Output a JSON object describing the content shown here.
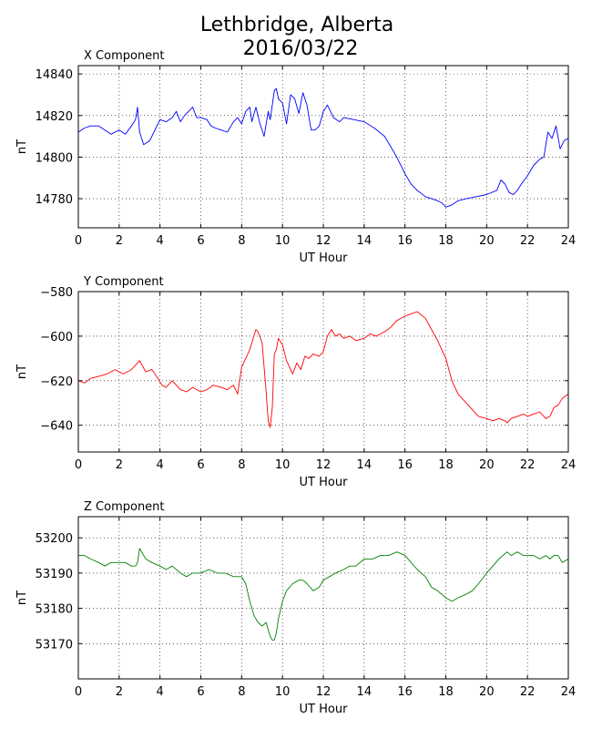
{
  "figure": {
    "title_line1": "Lethbridge, Alberta",
    "title_line2": "2016/03/22"
  },
  "chart_data": [
    {
      "type": "line",
      "title": "X Component",
      "xlabel": "UT Hour",
      "ylabel": "nT",
      "xlim": [
        0,
        24
      ],
      "ylim": [
        14766,
        14844
      ],
      "xticks": [
        0,
        2,
        4,
        6,
        8,
        10,
        12,
        14,
        16,
        18,
        20,
        22,
        24
      ],
      "yticks": [
        14780,
        14800,
        14820,
        14840
      ],
      "grid": true,
      "color": "#0000ff",
      "series": [
        {
          "x": [
            0,
            0.3,
            0.6,
            1.0,
            1.3,
            1.6,
            2.0,
            2.3,
            2.6,
            2.8,
            2.9,
            3.0,
            3.2,
            3.5,
            3.8,
            4.0,
            4.3,
            4.6,
            4.8,
            5.0,
            5.2,
            5.4,
            5.6,
            5.8,
            6.0,
            6.3,
            6.5,
            6.7,
            7.0,
            7.3,
            7.6,
            7.8,
            8.0,
            8.2,
            8.4,
            8.5,
            8.7,
            8.9,
            9.1,
            9.3,
            9.4,
            9.6,
            9.7,
            9.8,
            10.0,
            10.2,
            10.4,
            10.6,
            10.8,
            11.0,
            11.2,
            11.4,
            11.6,
            11.8,
            12.0,
            12.2,
            12.5,
            12.8,
            13.0,
            13.5,
            14.0,
            14.5,
            15.0,
            15.3,
            15.6,
            16.0,
            16.3,
            16.6,
            17.0,
            17.3,
            17.6,
            17.8,
            18.0,
            18.3,
            18.6,
            19.0,
            19.5,
            20.0,
            20.5,
            20.7,
            20.9,
            21.1,
            21.3,
            21.5,
            21.7,
            22.0,
            22.3,
            22.6,
            22.8,
            23.0,
            23.2,
            23.4,
            23.6,
            23.8,
            24.0
          ],
          "y": [
            14812,
            14814,
            14815,
            14815,
            14813,
            14811,
            14813,
            14811,
            14815,
            14818,
            14824,
            14812,
            14806,
            14808,
            14814,
            14818,
            14817,
            14819,
            14822,
            14817,
            14820,
            14822,
            14824,
            14819,
            14819,
            14818,
            14815,
            14814,
            14813,
            14812,
            14817,
            14819,
            14816,
            14822,
            14824,
            14817,
            14824,
            14816,
            14810,
            14822,
            14818,
            14832,
            14833,
            14828,
            14826,
            14816,
            14830,
            14828,
            14821,
            14831,
            14825,
            14813,
            14813,
            14815,
            14822,
            14825,
            14819,
            14817,
            14819,
            14818,
            14817,
            14814,
            14810,
            14805,
            14800,
            14792,
            14787,
            14784,
            14781,
            14780,
            14779,
            14778,
            14776,
            14777,
            14779,
            14780,
            14781,
            14782,
            14784,
            14789,
            14787,
            14783,
            14782,
            14784,
            14787,
            14791,
            14796,
            14799,
            14800,
            14812,
            14809,
            14815,
            14804,
            14808,
            14809
          ]
        }
      ]
    },
    {
      "type": "line",
      "title": "Y Component",
      "xlabel": "UT Hour",
      "ylabel": "nT",
      "xlim": [
        0,
        24
      ],
      "ylim": [
        -652,
        -580
      ],
      "xticks": [
        0,
        2,
        4,
        6,
        8,
        10,
        12,
        14,
        16,
        18,
        20,
        22,
        24
      ],
      "yticks": [
        -580,
        -600,
        -620,
        -640
      ],
      "grid": true,
      "color": "#ff0000",
      "series": [
        {
          "x": [
            0,
            0.3,
            0.6,
            1.0,
            1.4,
            1.8,
            2.2,
            2.6,
            2.8,
            3.0,
            3.3,
            3.6,
            3.9,
            4.1,
            4.3,
            4.6,
            5.0,
            5.3,
            5.6,
            6.0,
            6.3,
            6.6,
            7.0,
            7.3,
            7.6,
            7.8,
            8.0,
            8.2,
            8.4,
            8.6,
            8.7,
            8.8,
            9.0,
            9.2,
            9.3,
            9.4,
            9.5,
            9.6,
            9.7,
            9.8,
            10.0,
            10.2,
            10.5,
            10.7,
            10.9,
            11.1,
            11.3,
            11.5,
            11.8,
            12.0,
            12.2,
            12.4,
            12.6,
            12.8,
            13.0,
            13.3,
            13.6,
            14.0,
            14.3,
            14.6,
            15.0,
            15.3,
            15.6,
            16.0,
            16.3,
            16.6,
            17.0,
            17.3,
            17.6,
            18.0,
            18.3,
            18.6,
            19.0,
            19.3,
            19.6,
            20.0,
            20.3,
            20.6,
            20.9,
            21.0,
            21.2,
            21.5,
            21.8,
            22.0,
            22.3,
            22.6,
            22.9,
            23.1,
            23.3,
            23.5,
            23.7,
            24.0
          ],
          "y": [
            -620,
            -621,
            -619,
            -618,
            -617,
            -615,
            -617,
            -615,
            -613,
            -611,
            -616,
            -615,
            -619,
            -622,
            -623,
            -620,
            -624,
            -625,
            -623,
            -625,
            -624,
            -622,
            -623,
            -624,
            -622,
            -626,
            -614,
            -610,
            -606,
            -600,
            -597,
            -598,
            -603,
            -625,
            -638,
            -641,
            -632,
            -608,
            -606,
            -601,
            -604,
            -611,
            -617,
            -612,
            -615,
            -609,
            -610,
            -608,
            -609,
            -607,
            -600,
            -597,
            -600,
            -599,
            -601,
            -600,
            -602,
            -601,
            -599,
            -600,
            -598,
            -596,
            -593,
            -591,
            -590,
            -589,
            -592,
            -597,
            -602,
            -610,
            -620,
            -626,
            -630,
            -633,
            -636,
            -637,
            -638,
            -637,
            -638,
            -639,
            -637,
            -636,
            -635,
            -636,
            -635,
            -634,
            -637,
            -636,
            -632,
            -631,
            -628,
            -626
          ]
        }
      ]
    },
    {
      "type": "line",
      "title": "Z Component",
      "xlabel": "UT Hour",
      "ylabel": "nT",
      "xlim": [
        0,
        24
      ],
      "ylim": [
        53160,
        53206
      ],
      "xticks": [
        0,
        2,
        4,
        6,
        8,
        10,
        12,
        14,
        16,
        18,
        20,
        22,
        24
      ],
      "yticks": [
        53170,
        53180,
        53190,
        53200
      ],
      "grid": true,
      "color": "#008000",
      "series": [
        {
          "x": [
            0,
            0.3,
            0.6,
            1.0,
            1.3,
            1.6,
            2.0,
            2.3,
            2.6,
            2.8,
            2.9,
            3.0,
            3.3,
            3.6,
            4.0,
            4.3,
            4.6,
            5.0,
            5.3,
            5.6,
            6.0,
            6.4,
            6.8,
            7.2,
            7.6,
            8.0,
            8.2,
            8.4,
            8.6,
            8.8,
            9.0,
            9.2,
            9.4,
            9.5,
            9.6,
            9.7,
            9.8,
            10.0,
            10.2,
            10.5,
            10.8,
            11.0,
            11.2,
            11.5,
            11.8,
            12.0,
            12.3,
            12.6,
            13.0,
            13.3,
            13.6,
            14.0,
            14.4,
            14.8,
            15.2,
            15.6,
            16.0,
            16.3,
            16.6,
            17.0,
            17.3,
            17.6,
            18.0,
            18.3,
            18.6,
            19.0,
            19.3,
            19.6,
            20.0,
            20.3,
            20.6,
            21.0,
            21.2,
            21.5,
            21.8,
            22.0,
            22.3,
            22.6,
            22.9,
            23.1,
            23.3,
            23.5,
            23.7,
            24.0
          ],
          "y": [
            53195,
            53195,
            53194,
            53193,
            53192,
            53193,
            53193,
            53193,
            53192,
            53192,
            53193,
            53197,
            53194,
            53193,
            53192,
            53191,
            53192,
            53190,
            53189,
            53190,
            53190,
            53191,
            53190,
            53190,
            53189,
            53189,
            53187,
            53182,
            53178,
            53176,
            53175,
            53176,
            53172,
            53171,
            53171,
            53173,
            53177,
            53182,
            53185,
            53187,
            53188,
            53188,
            53187,
            53185,
            53186,
            53188,
            53189,
            53190,
            53191,
            53192,
            53192,
            53194,
            53194,
            53195,
            53195,
            53196,
            53195,
            53193,
            53191,
            53189,
            53186,
            53185,
            53183,
            53182,
            53183,
            53184,
            53185,
            53187,
            53190,
            53192,
            53194,
            53196,
            53195,
            53196,
            53195,
            53195,
            53195,
            53194,
            53195,
            53194,
            53195,
            53195,
            53193,
            53194
          ]
        }
      ]
    }
  ]
}
